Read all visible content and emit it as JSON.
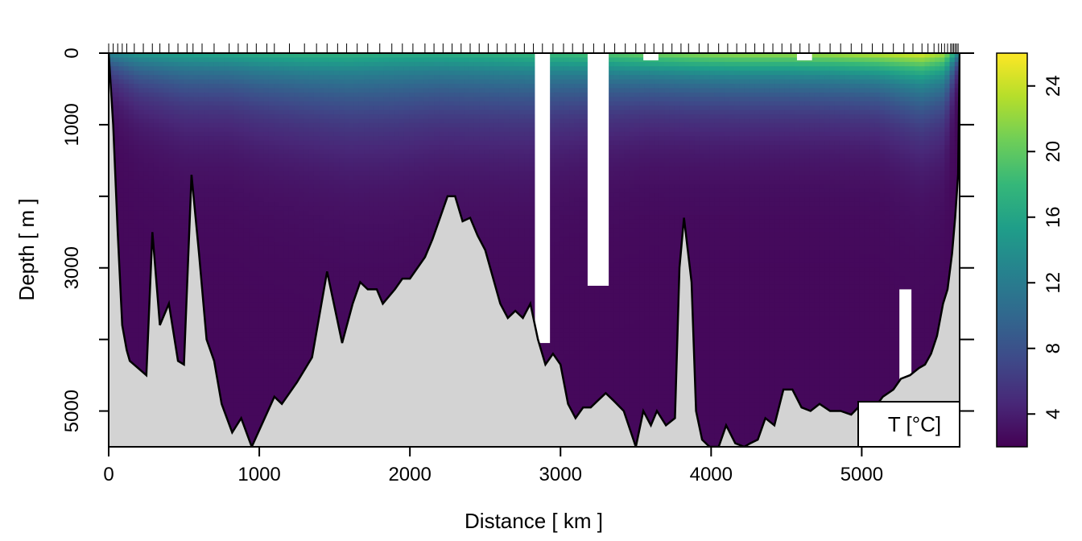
{
  "chart_data": {
    "type": "heatmap",
    "title": "",
    "xlabel": "Distance [ km ]",
    "ylabel": "Depth [ m ]",
    "xlim": [
      0,
      5650
    ],
    "ylim": [
      5500,
      0
    ],
    "x_ticks": [
      0,
      1000,
      2000,
      3000,
      4000,
      5000
    ],
    "y_ticks": [
      0,
      1000,
      3000,
      5000
    ],
    "y_ticks_minor": [
      2000,
      4000
    ],
    "colorbar": {
      "label": "T [°C]",
      "range": [
        2,
        26
      ],
      "ticks": [
        4,
        8,
        12,
        16,
        20,
        24
      ],
      "colormap": "viridis",
      "stops": [
        "#440154",
        "#482878",
        "#3e4a89",
        "#31688e",
        "#26828e",
        "#1f9e89",
        "#35b779",
        "#6ece58",
        "#b5de2b",
        "#fde725"
      ]
    },
    "land_color": "#d3d3d3",
    "station_distances_km": [
      0,
      30,
      60,
      90,
      120,
      170,
      230,
      290,
      340,
      400,
      460,
      520,
      560,
      620,
      700,
      800,
      860,
      920,
      980,
      1050,
      1100,
      1200,
      1300,
      1380,
      1450,
      1520,
      1580,
      1650,
      1720,
      1800,
      1880,
      1950,
      2020,
      2100,
      2160,
      2220,
      2280,
      2340,
      2400,
      2460,
      2520,
      2580,
      2640,
      2700,
      2760,
      2820,
      2880,
      2950,
      3020,
      3080,
      3150,
      3220,
      3290,
      3360,
      3430,
      3500,
      3560,
      3620,
      3680,
      3740,
      3800,
      3850,
      3920,
      3980,
      4050,
      4110,
      4170,
      4230,
      4290,
      4350,
      4410,
      4470,
      4530,
      4590,
      4650,
      4720,
      4790,
      4860,
      4930,
      5000,
      5070,
      5140,
      5210,
      5280,
      5340,
      5400,
      5440,
      5480,
      5510,
      5530,
      5550,
      5570,
      5590,
      5600,
      5610,
      5620,
      5630,
      5640
    ],
    "bottom_depth_profile": {
      "distance_km": [
        0,
        30,
        60,
        90,
        120,
        140,
        250,
        290,
        340,
        400,
        460,
        500,
        550,
        600,
        650,
        700,
        750,
        820,
        880,
        950,
        1100,
        1150,
        1250,
        1350,
        1450,
        1550,
        1620,
        1670,
        1720,
        1780,
        1820,
        1900,
        1950,
        2000,
        2100,
        2150,
        2200,
        2250,
        2300,
        2350,
        2400,
        2450,
        2500,
        2600,
        2650,
        2700,
        2750,
        2800,
        2850,
        2900,
        2950,
        3000,
        3050,
        3100,
        3150,
        3200,
        3250,
        3300,
        3350,
        3420,
        3500,
        3550,
        3600,
        3640,
        3700,
        3760,
        3790,
        3820,
        3870,
        3900,
        3940,
        3990,
        4050,
        4100,
        4160,
        4220,
        4260,
        4310,
        4360,
        4420,
        4480,
        4540,
        4600,
        4660,
        4720,
        4790,
        4860,
        4930,
        5000,
        5070,
        5140,
        5210,
        5260,
        5320,
        5380,
        5420,
        5460,
        5500,
        5540,
        5570,
        5600,
        5620,
        5640,
        5650
      ],
      "depth_m": [
        0,
        1000,
        2500,
        3800,
        4150,
        4300,
        4500,
        2500,
        3800,
        3500,
        4300,
        4350,
        1700,
        2800,
        4000,
        4300,
        4900,
        5300,
        5100,
        5500,
        4800,
        4900,
        4600,
        4250,
        3050,
        4050,
        3500,
        3200,
        3300,
        3300,
        3500,
        3300,
        3150,
        3150,
        2850,
        2600,
        2300,
        2000,
        2000,
        2350,
        2300,
        2550,
        2750,
        3500,
        3700,
        3600,
        3700,
        3500,
        4000,
        4350,
        4200,
        4350,
        4900,
        5100,
        4950,
        4950,
        4850,
        4750,
        4850,
        5000,
        5500,
        5000,
        5200,
        5000,
        5200,
        5100,
        3000,
        2300,
        3200,
        5000,
        5400,
        5500,
        5500,
        5200,
        5450,
        5500,
        5450,
        5400,
        5100,
        5200,
        4700,
        4700,
        4950,
        5000,
        4900,
        5000,
        5000,
        5050,
        4900,
        5000,
        4800,
        4700,
        4550,
        4500,
        4400,
        4350,
        4200,
        3950,
        3500,
        3300,
        2800,
        2300,
        1700,
        0
      ]
    },
    "data_gaps": [
      {
        "x_range_km": [
          2830,
          2930
        ],
        "depth_range_m": [
          0,
          4050
        ]
      },
      {
        "x_range_km": [
          3180,
          3320
        ],
        "depth_range_m": [
          0,
          3250
        ]
      },
      {
        "x_range_km": [
          3550,
          3650
        ],
        "depth_range_m": [
          0,
          100
        ]
      },
      {
        "x_range_km": [
          4570,
          4670
        ],
        "depth_range_m": [
          0,
          100
        ]
      },
      {
        "x_range_km": [
          5250,
          5330
        ],
        "depth_range_m": [
          3300,
          5000
        ]
      }
    ],
    "surface_temperature_profile": {
      "distance_km": [
        0,
        200,
        500,
        800,
        1000,
        1300,
        1600,
        1900,
        2200,
        2500,
        2800,
        3000,
        3300,
        3600,
        3900,
        4200,
        4500,
        4800,
        5100,
        5400,
        5550,
        5650
      ],
      "surface_temp_c": [
        13,
        15,
        16,
        16.5,
        17,
        17.5,
        17.5,
        17,
        17,
        17.5,
        18,
        18.5,
        19.5,
        21,
        22,
        22.5,
        22.5,
        23,
        24,
        25,
        23,
        13
      ],
      "thermocline_depth_m": [
        300,
        450,
        550,
        550,
        600,
        650,
        700,
        700,
        650,
        650,
        650,
        600,
        550,
        500,
        500,
        500,
        500,
        500,
        500,
        600,
        550,
        150
      ]
    },
    "deep_temperature_c": 2.5
  }
}
